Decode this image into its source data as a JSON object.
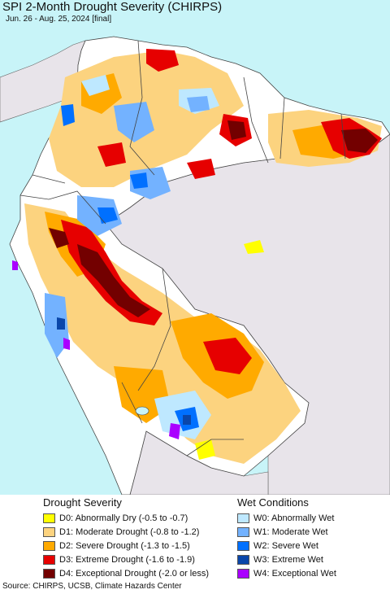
{
  "map": {
    "title": "SPI 2-Month Drought Severity (CHIRPS)",
    "subtitle": "Jun. 26 - Aug. 25, 2024 [final]",
    "colors": {
      "ocean": "#c8f4f8",
      "outside_land": "#e8e4ea",
      "normal": "#ffffff",
      "border": "#444444"
    }
  },
  "legend": {
    "drought": {
      "heading": "Drought Severity",
      "items": [
        {
          "label": "D0: Abnormally Dry (-0.5 to -0.7)",
          "color": "#ffff00"
        },
        {
          "label": "D1: Moderate Drought (-0.8 to -1.2)",
          "color": "#fcd37f"
        },
        {
          "label": "D2: Severe Drought (-1.3 to -1.5)",
          "color": "#ffaa00"
        },
        {
          "label": "D3: Extreme Drought (-1.6 to -1.9)",
          "color": "#e60000"
        },
        {
          "label": "D4: Exceptional Drought (-2.0 or less)",
          "color": "#730000"
        }
      ]
    },
    "wet": {
      "heading": "Wet Conditions",
      "items": [
        {
          "label": "W0: Abnormally Wet",
          "color": "#bee8ff"
        },
        {
          "label": "W1: Moderate Wet",
          "color": "#73b2ff"
        },
        {
          "label": "W2: Severe Wet",
          "color": "#0070ff"
        },
        {
          "label": "W3: Extreme Wet",
          "color": "#0a46aa"
        },
        {
          "label": "W4: Exceptional Wet",
          "color": "#aa00ff"
        }
      ]
    }
  },
  "footer": {
    "source": "Source: CHIRPS, UCSB, Climate Hazards Center"
  }
}
